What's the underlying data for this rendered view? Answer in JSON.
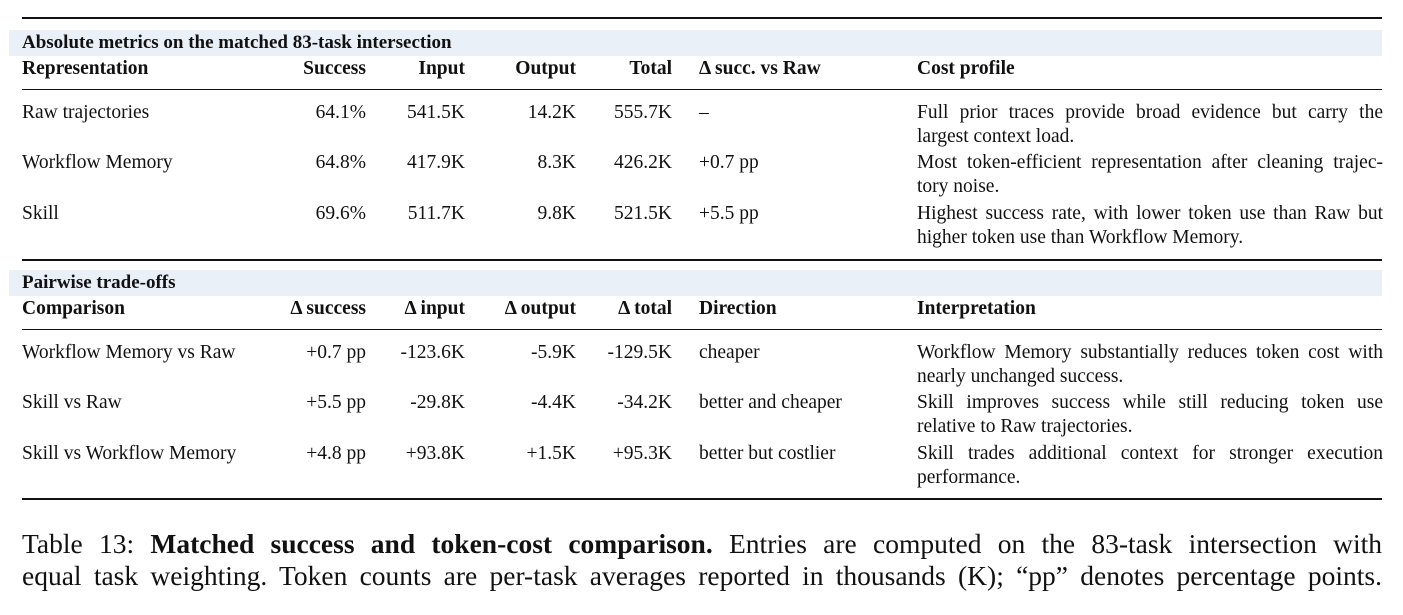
{
  "section1": {
    "title": "Absolute metrics on the matched 83-task intersection",
    "headers": [
      "Representation",
      "Success",
      "Input",
      "Output",
      "Total",
      "Δ succ. vs Raw",
      "Cost profile"
    ],
    "rows": [
      {
        "name": "Raw trajectories",
        "success": "64.1%",
        "input": "541.5K",
        "output": "14.2K",
        "total": "555.7K",
        "delta": "–",
        "profile": "Full prior traces provide broad evidence but carry the largest context load."
      },
      {
        "name": "Workflow Memory",
        "success": "64.8%",
        "input": "417.9K",
        "output": "8.3K",
        "total": "426.2K",
        "delta": "+0.7 pp",
        "profile": "Most token-efficient representation after cleaning trajec-tory noise."
      },
      {
        "name": "Skill",
        "success": "69.6%",
        "input": "511.7K",
        "output": "9.8K",
        "total": "521.5K",
        "delta": "+5.5 pp",
        "profile": "Highest success rate, with lower token use than Raw but higher token use than Workflow Memory."
      }
    ]
  },
  "section2": {
    "title": "Pairwise trade-offs",
    "headers": [
      "Comparison",
      "Δ success",
      "Δ input",
      "Δ output",
      "Δ total",
      "Direction",
      "Interpretation"
    ],
    "rows": [
      {
        "name": "Workflow Memory vs Raw",
        "success": "+0.7 pp",
        "input": "-123.6K",
        "output": "-5.9K",
        "total": "-129.5K",
        "direction": "cheaper",
        "interp": "Workflow Memory substantially reduces token cost with nearly unchanged success."
      },
      {
        "name": "Skill vs Raw",
        "success": "+5.5 pp",
        "input": "-29.8K",
        "output": "-4.4K",
        "total": "-34.2K",
        "direction": "better and cheaper",
        "interp": "Skill improves success while still reducing token use relative to Raw trajectories."
      },
      {
        "name": "Skill vs Workflow Memory",
        "success": "+4.8 pp",
        "input": "+93.8K",
        "output": "+1.5K",
        "total": "+95.3K",
        "direction": "better but costlier",
        "interp": "Skill trades additional context for stronger execution performance."
      }
    ]
  },
  "caption": {
    "label": "Table 13:",
    "bold": "Matched success and token-cost comparison.",
    "line1_rest": "Entries are computed on the 83-task intersection with",
    "line2": "equal task weighting. Token counts are per-task averages reported in thousands (K); “pp” denotes percentage points."
  }
}
